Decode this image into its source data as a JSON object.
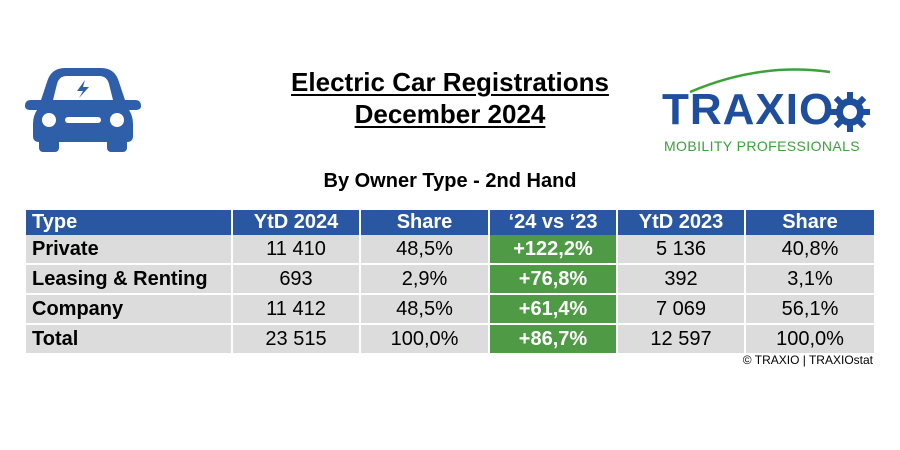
{
  "title": {
    "line1": "Electric Car Registrations",
    "line2": "December 2024"
  },
  "subtitle": "By Owner Type - 2nd Hand",
  "logo": {
    "word": "TRAXIO",
    "tagline": "MOBILITY PROFESSIONALS",
    "colors": {
      "primary": "#1f4e9c",
      "accent": "#3ba23a"
    }
  },
  "car_icon": {
    "icon": "electric-car-icon",
    "color": "#2f5fa8"
  },
  "table": {
    "headers": [
      "Type",
      "YtD 2024",
      "Share",
      "‘24 vs ‘23",
      "YtD 2023",
      "Share"
    ],
    "rows": [
      [
        "Private",
        "11 410",
        "48,5%",
        "+122,2%",
        "5 136",
        "40,8%"
      ],
      [
        "Leasing & Renting",
        "693",
        "2,9%",
        "+76,8%",
        "392",
        "3,1%"
      ],
      [
        "Company",
        "11 412",
        "48,5%",
        "+61,4%",
        "7 069",
        "56,1%"
      ],
      [
        "Total",
        "23 515",
        "100,0%",
        "+86,7%",
        "12 597",
        "100,0%"
      ]
    ],
    "colors": {
      "header": "#2a57a2",
      "cell": "#dcdcdc",
      "growth": "#4f9a45"
    }
  },
  "copyright": "© TRAXIO | TRAXIOstat"
}
